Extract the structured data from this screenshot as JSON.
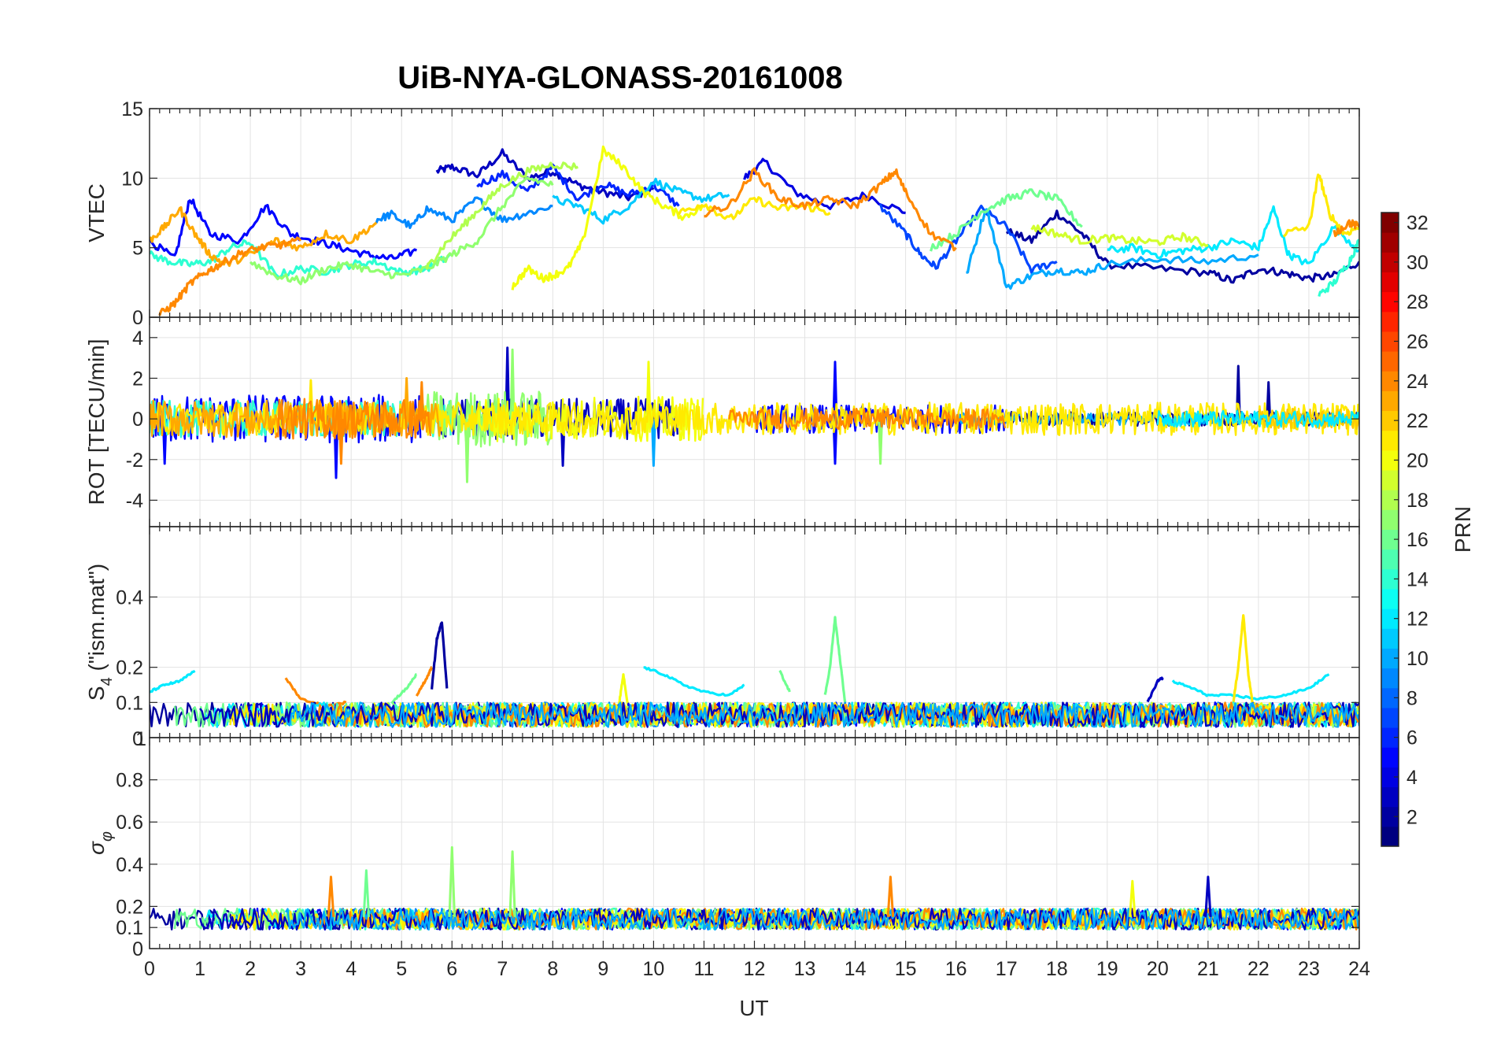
{
  "chart_data": [
    {
      "type": "line",
      "id": "vtec",
      "title": "UiB-NYA-GLONASS-20161008",
      "xlabel": "UT",
      "ylabel": "VTEC",
      "xlim": [
        0,
        24
      ],
      "ylim": [
        0,
        15
      ],
      "xticks": [
        0,
        1,
        2,
        3,
        4,
        5,
        6,
        7,
        8,
        9,
        10,
        11,
        12,
        13,
        14,
        15,
        16,
        17,
        18,
        19,
        20,
        21,
        22,
        23,
        24
      ],
      "yticks": [
        0,
        5,
        10,
        15
      ],
      "ytick_labels": [
        "0",
        "5",
        "10",
        "15"
      ],
      "grid": true,
      "color_by": "PRN",
      "series": [
        {
          "prn": 3,
          "x": [
            5.7,
            6.0,
            6.5,
            7.0,
            7.5,
            8.0,
            8.5,
            9.0,
            9.5,
            10.0
          ],
          "y": [
            10.5,
            10.8,
            10.2,
            11.8,
            10.0,
            10.5,
            9.5,
            9.0,
            8.6,
            9.2
          ]
        },
        {
          "prn": 4,
          "x": [
            11.8,
            12.2,
            12.8,
            13.5,
            14.2,
            15.0
          ],
          "y": [
            10.0,
            11.2,
            9.0,
            8.0,
            8.8,
            7.5
          ]
        },
        {
          "prn": 2,
          "x": [
            17.0,
            17.5,
            18.0,
            18.5,
            19.0,
            20.0,
            21.0,
            21.5,
            22.0,
            22.5,
            23.0,
            23.5,
            24.0
          ],
          "y": [
            6.2,
            5.5,
            7.5,
            6.0,
            3.8,
            3.5,
            3.2,
            2.6,
            3.5,
            3.2,
            2.8,
            3.0,
            4.0
          ]
        },
        {
          "prn": 5,
          "x": [
            0.0,
            0.5,
            0.8,
            1.2,
            1.8,
            2.3,
            2.8,
            3.3,
            3.8,
            4.3,
            4.8,
            5.3
          ],
          "y": [
            5.5,
            4.2,
            8.6,
            6.0,
            5.5,
            8.0,
            6.0,
            5.5,
            5.0,
            4.5,
            4.2,
            4.8
          ]
        },
        {
          "prn": 6,
          "x": [
            6.5,
            7.0,
            7.5,
            8.0,
            8.5,
            9.0,
            9.5,
            10.0,
            10.5
          ],
          "y": [
            9.5,
            10.3,
            9.0,
            10.8,
            8.5,
            9.6,
            8.8,
            9.5,
            8.0
          ]
        },
        {
          "prn": 7,
          "x": [
            14.5,
            15.0,
            15.3,
            15.6,
            16.0,
            16.5,
            17.0,
            17.5,
            18.0
          ],
          "y": [
            8.0,
            6.0,
            4.5,
            3.6,
            5.5,
            7.8,
            6.5,
            3.4,
            4.0
          ]
        },
        {
          "prn": 9,
          "x": [
            4.5,
            4.8,
            5.2,
            5.5,
            6.0,
            6.5,
            7.0,
            7.5,
            8.0
          ],
          "y": [
            7.0,
            7.4,
            6.5,
            7.8,
            7.0,
            8.5,
            7.0,
            7.5,
            8.0
          ]
        },
        {
          "prn": 10,
          "x": [
            16.2,
            16.6,
            17.0,
            17.5,
            18.0,
            18.5,
            19.0,
            20.0,
            21.0,
            22.0
          ],
          "y": [
            3.0,
            8.0,
            2.2,
            3.0,
            3.4,
            3.2,
            3.8,
            4.2,
            4.0,
            4.5
          ]
        },
        {
          "prn": 11,
          "x": [
            8.0,
            8.5,
            9.0,
            9.5,
            10.0,
            10.5,
            11.0,
            11.5
          ],
          "y": [
            8.5,
            8.0,
            7.0,
            8.0,
            9.8,
            9.0,
            8.5,
            8.8
          ]
        },
        {
          "prn": 12,
          "x": [
            19.0,
            19.5,
            20.0,
            20.5,
            21.0,
            21.5,
            22.0,
            22.3,
            22.6,
            23.0,
            23.5,
            24.0
          ],
          "y": [
            4.8,
            5.0,
            4.5,
            4.8,
            5.0,
            5.5,
            5.0,
            7.8,
            4.5,
            3.8,
            6.5,
            4.8
          ]
        },
        {
          "prn": 14,
          "x": [
            0.0,
            0.4,
            0.8,
            1.2,
            1.6,
            2.0,
            2.5,
            3.0,
            3.5,
            4.0,
            4.5,
            5.0,
            5.5,
            6.0
          ],
          "y": [
            4.5,
            4.0,
            3.8,
            4.0,
            5.0,
            5.4,
            3.0,
            3.5,
            3.3,
            3.8,
            4.0,
            3.2,
            3.5,
            4.5
          ]
        },
        {
          "prn": 14,
          "x": [
            23.2,
            23.5,
            23.8,
            24.0
          ],
          "y": [
            1.6,
            2.5,
            4.0,
            5.5
          ]
        },
        {
          "prn": 16,
          "x": [
            15.5,
            16.0,
            16.5,
            17.0,
            17.5,
            18.0,
            18.5
          ],
          "y": [
            5.0,
            6.0,
            7.6,
            8.5,
            9.0,
            8.5,
            6.5
          ]
        },
        {
          "prn": 17,
          "x": [
            2.0,
            2.5,
            3.0,
            3.5,
            4.0,
            4.5,
            5.0,
            5.5,
            6.0,
            6.5,
            7.0,
            7.5,
            8.0
          ],
          "y": [
            4.0,
            3.0,
            2.6,
            3.5,
            3.8,
            3.2,
            3.0,
            3.5,
            4.5,
            5.5,
            8.0,
            10.0,
            9.5
          ]
        },
        {
          "prn": 18,
          "x": [
            5.5,
            5.8,
            6.2,
            6.6,
            7.0,
            7.5,
            8.0,
            8.5
          ],
          "y": [
            3.5,
            5.0,
            6.5,
            8.0,
            9.5,
            10.5,
            11.0,
            10.8
          ]
        },
        {
          "prn": 19,
          "x": [
            17.5,
            18.0,
            18.5,
            19.0,
            19.5,
            20.0,
            20.5,
            21.0
          ],
          "y": [
            6.5,
            6.0,
            5.5,
            5.7,
            5.5,
            5.4,
            5.8,
            5.2
          ]
        },
        {
          "prn": 20,
          "x": [
            7.2,
            7.5,
            7.8,
            8.0,
            8.3,
            8.6,
            9.0,
            9.4,
            9.8,
            10.2,
            10.6,
            11.0
          ],
          "y": [
            2.2,
            3.5,
            2.8,
            3.0,
            3.5,
            5.5,
            12.0,
            10.8,
            9.0,
            8.0,
            7.2,
            8.0
          ]
        },
        {
          "prn": 21,
          "x": [
            10.5,
            11.0,
            11.5,
            12.0,
            12.5,
            13.0,
            13.5
          ],
          "y": [
            7.5,
            8.2,
            7.0,
            8.5,
            7.8,
            8.0,
            7.5
          ]
        },
        {
          "prn": 21,
          "x": [
            22.5,
            23.0,
            23.2,
            23.4,
            23.7,
            24.0
          ],
          "y": [
            6.0,
            6.5,
            10.4,
            7.5,
            6.0,
            6.5
          ]
        },
        {
          "prn": 23,
          "x": [
            0.0,
            0.3,
            0.6,
            0.9,
            1.2,
            1.5,
            2.0,
            2.5,
            3.0,
            3.5,
            4.0,
            4.5
          ],
          "y": [
            5.5,
            6.5,
            7.8,
            6.0,
            4.5,
            3.8,
            4.5,
            5.5,
            5.0,
            6.0,
            5.5,
            6.8
          ]
        },
        {
          "prn": 24,
          "x": [
            0.2,
            0.5,
            0.8,
            1.1,
            1.4,
            1.8,
            2.2,
            2.6,
            3.0
          ],
          "y": [
            0.2,
            1.0,
            2.4,
            3.2,
            3.8,
            4.6,
            5.0,
            5.2,
            5.5
          ]
        },
        {
          "prn": 24,
          "x": [
            11.0,
            11.5,
            12.0,
            12.5,
            13.0,
            13.5,
            14.0,
            14.5,
            14.8,
            15.0,
            15.5,
            16.0
          ],
          "y": [
            7.5,
            8.0,
            10.5,
            8.5,
            8.0,
            8.5,
            8.0,
            9.5,
            10.5,
            9.0,
            6.0,
            5.0
          ]
        },
        {
          "prn": 24,
          "x": [
            23.5,
            23.8,
            24.0
          ],
          "y": [
            6.0,
            6.8,
            6.5
          ]
        }
      ]
    },
    {
      "type": "line",
      "id": "rot",
      "xlim": [
        0,
        24
      ],
      "ylim": [
        -5.3,
        5
      ],
      "yticks": [
        -4,
        -2,
        0,
        2,
        4
      ],
      "ytick_labels": [
        "-4",
        "-2",
        "0",
        "2",
        "4"
      ],
      "ylabel": "ROT [TECU/min]",
      "grid": true,
      "color_by": "PRN",
      "noise_series": [
        {
          "prn": 3,
          "x_range": [
            5.7,
            10.5
          ],
          "amplitude": 1.0,
          "offset": 0.0,
          "spikes": [
            [
              7.1,
              3.5
            ],
            [
              8.2,
              -2.3
            ]
          ]
        },
        {
          "prn": 5,
          "x_range": [
            0.0,
            5.4
          ],
          "amplitude": 1.2,
          "offset": 0.0,
          "spikes": [
            [
              3.7,
              -2.9
            ],
            [
              0.3,
              -2.2
            ]
          ]
        },
        {
          "prn": 5,
          "x_range": [
            12.0,
            17.0
          ],
          "amplitude": 0.7,
          "offset": 0.0,
          "spikes": [
            [
              13.6,
              2.8
            ],
            [
              13.6,
              -2.2
            ]
          ]
        },
        {
          "prn": 2,
          "x_range": [
            17.0,
            24.0
          ],
          "amplitude": 0.35,
          "offset": 0.0,
          "spikes": [
            [
              21.6,
              2.6
            ],
            [
              22.2,
              1.8
            ]
          ]
        },
        {
          "prn": 10,
          "x_range": [
            16.0,
            22.0
          ],
          "amplitude": 0.3,
          "offset": 0.0,
          "spikes": [
            [
              10.0,
              -2.3
            ]
          ]
        },
        {
          "prn": 14,
          "x_range": [
            0.0,
            6.0
          ],
          "amplitude": 0.9,
          "offset": 0.0,
          "spikes": []
        },
        {
          "prn": 17,
          "x_range": [
            5.5,
            8.0
          ],
          "amplitude": 1.4,
          "offset": 0.0,
          "spikes": [
            [
              6.3,
              -3.1
            ],
            [
              7.2,
              3.4
            ],
            [
              14.5,
              -2.2
            ]
          ]
        },
        {
          "prn": 20,
          "x_range": [
            6.5,
            11.0
          ],
          "amplitude": 1.1,
          "offset": 0.0,
          "spikes": [
            [
              9.9,
              2.8
            ]
          ]
        },
        {
          "prn": 21,
          "x_range": [
            0.0,
            24.0
          ],
          "amplitude": 0.8,
          "offset": 0.0,
          "spikes": [
            [
              3.2,
              1.9
            ]
          ]
        },
        {
          "prn": 23,
          "x_range": [
            0.0,
            5.8
          ],
          "amplitude": 0.9,
          "offset": 0.0,
          "spikes": [
            [
              5.1,
              2.0
            ]
          ]
        },
        {
          "prn": 24,
          "x_range": [
            2.5,
            5.6
          ],
          "amplitude": 1.0,
          "offset": 0.0,
          "spikes": [
            [
              3.8,
              -2.2
            ],
            [
              5.4,
              1.8
            ]
          ]
        },
        {
          "prn": 24,
          "x_range": [
            11.5,
            17.0
          ],
          "amplitude": 0.5,
          "offset": 0.0,
          "spikes": []
        },
        {
          "prn": 22,
          "x_range": [
            22.0,
            24.0
          ],
          "amplitude": 0.5,
          "offset": 0.0,
          "spikes": []
        },
        {
          "prn": 12,
          "x_range": [
            20.0,
            24.0
          ],
          "amplitude": 0.4,
          "offset": 0.0,
          "spikes": []
        }
      ]
    },
    {
      "type": "line",
      "id": "s4",
      "xlim": [
        0,
        24
      ],
      "ylim": [
        0,
        0.6
      ],
      "yticks": [
        0.1,
        0.2,
        0.4
      ],
      "ytick_labels": [
        "0.1",
        "0.2",
        "0.4"
      ],
      "ylabel": "S4 (\"ism.mat\")",
      "ylabel_main": "S",
      "ylabel_sub": "4",
      "ylabel_rest": " (\"ism.mat\")",
      "grid": true,
      "color_by": "PRN",
      "series": [
        {
          "prn": 12,
          "x": [
            0.0,
            0.3,
            0.6,
            0.9
          ],
          "y": [
            0.13,
            0.15,
            0.16,
            0.19
          ]
        },
        {
          "prn": 12,
          "x": [
            9.8,
            10.2,
            10.6,
            11.0,
            11.5,
            11.8
          ],
          "y": [
            0.2,
            0.18,
            0.15,
            0.13,
            0.12,
            0.15
          ]
        },
        {
          "prn": 12,
          "x": [
            20.3,
            20.7,
            21.0,
            21.5,
            22.0,
            22.5,
            23.0,
            23.4
          ],
          "y": [
            0.16,
            0.14,
            0.12,
            0.12,
            0.11,
            0.12,
            0.14,
            0.18
          ]
        },
        {
          "prn": 2,
          "x": [
            5.6,
            5.7,
            5.8,
            5.9
          ],
          "y": [
            0.14,
            0.28,
            0.33,
            0.14
          ]
        },
        {
          "prn": 16,
          "x": [
            13.4,
            13.5,
            13.6,
            13.7,
            13.8
          ],
          "y": [
            0.12,
            0.2,
            0.34,
            0.22,
            0.1
          ]
        },
        {
          "prn": 21,
          "x": [
            21.5,
            21.6,
            21.7,
            21.8,
            21.9
          ],
          "y": [
            0.1,
            0.2,
            0.35,
            0.18,
            0.08
          ]
        },
        {
          "prn": 20,
          "x": [
            9.3,
            9.4,
            9.5
          ],
          "y": [
            0.08,
            0.18,
            0.08
          ]
        },
        {
          "prn": 24,
          "x": [
            2.7,
            3.0,
            3.5,
            3.9
          ],
          "y": [
            0.17,
            0.11,
            0.09,
            0.1
          ]
        },
        {
          "prn": 24,
          "x": [
            5.3,
            5.5,
            5.6
          ],
          "y": [
            0.12,
            0.17,
            0.2
          ]
        },
        {
          "prn": 16,
          "x": [
            4.8,
            5.1,
            5.3
          ],
          "y": [
            0.1,
            0.14,
            0.18
          ]
        },
        {
          "prn": 16,
          "x": [
            12.5,
            12.7
          ],
          "y": [
            0.19,
            0.13
          ]
        },
        {
          "prn": 3,
          "x": [
            19.8,
            20.0,
            20.1
          ],
          "y": [
            0.1,
            0.16,
            0.17
          ]
        }
      ],
      "baseline": {
        "y_center": 0.065,
        "amplitude": 0.035
      }
    },
    {
      "type": "line",
      "id": "sigma_phi",
      "xlim": [
        0,
        24
      ],
      "ylim": [
        0,
        1.0
      ],
      "yticks": [
        0,
        0.1,
        0.2,
        0.4,
        0.6,
        0.8
      ],
      "ytick_labels": [
        "0",
        "0.1",
        "0.2",
        "0.4",
        "0.6",
        "0.8"
      ],
      "top_tick_labels": [
        "0",
        "1"
      ],
      "ylabel": "σφ",
      "ylabel_main": "σ",
      "ylabel_sub": "φ",
      "grid": true,
      "color_by": "PRN",
      "spikes": [
        [
          6.0,
          0.48,
          17
        ],
        [
          7.2,
          0.46,
          17
        ],
        [
          4.3,
          0.37,
          16
        ],
        [
          3.6,
          0.34,
          24
        ],
        [
          14.7,
          0.34,
          24
        ],
        [
          19.5,
          0.32,
          20
        ],
        [
          21.0,
          0.34,
          3
        ]
      ],
      "baseline": {
        "y_center": 0.14,
        "amplitude": 0.05
      }
    }
  ],
  "colorbar": {
    "label": "PRN",
    "min": 1,
    "max": 32,
    "ticks": [
      2,
      4,
      6,
      8,
      10,
      12,
      14,
      16,
      18,
      20,
      22,
      24,
      26,
      28,
      30,
      32
    ],
    "tick_labels": [
      "2",
      "4",
      "6",
      "8",
      "10",
      "12",
      "14",
      "16",
      "18",
      "20",
      "22",
      "24",
      "26",
      "28",
      "30",
      "32"
    ],
    "colormap": "jet"
  }
}
